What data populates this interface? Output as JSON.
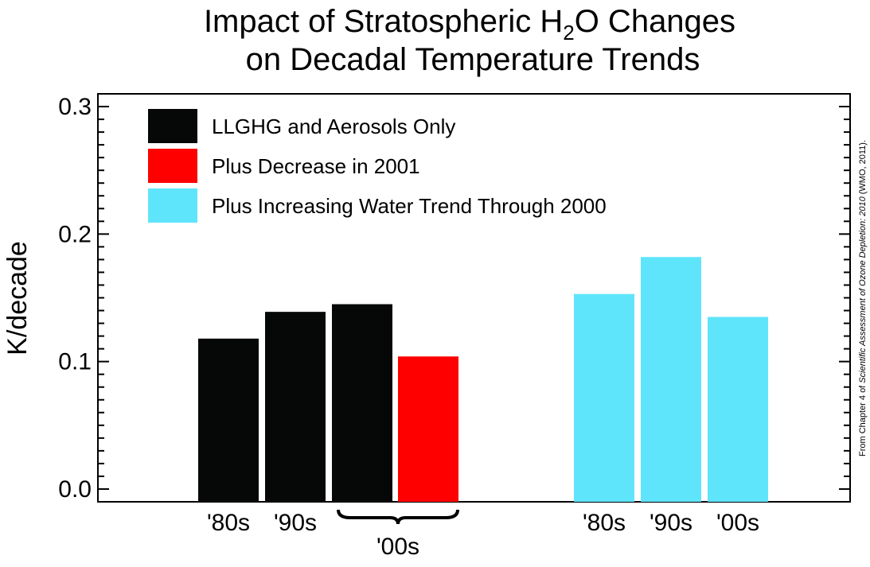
{
  "title": {
    "line1_prefix": "Impact of Stratospheric H",
    "line1_sub": "2",
    "line1_suffix": "O Changes",
    "line2": "on Decadal Temperature Trends"
  },
  "credit": {
    "prefix": "From Chapter 4 of ",
    "italic": "Scientific Assessment of Ozone Depletion: 2010",
    "suffix": " (WMO, 2011)."
  },
  "chart_data": {
    "type": "bar",
    "title": "Impact of Stratospheric H2O Changes on Decadal Temperature Trends",
    "xlabel": "",
    "ylabel": "K/decade",
    "ylim": [
      -0.01,
      0.31
    ],
    "yticks": [
      "0.0",
      "0.1",
      "0.2",
      "0.3"
    ],
    "legend_position": "top-left",
    "series": [
      {
        "name": "LLGHG and Aerosols Only",
        "color": "#060707"
      },
      {
        "name": "Plus Decrease in 2001",
        "color": "#fe0000"
      },
      {
        "name": "Plus Increasing Water Trend Through 2000",
        "color": "#5fe5fb"
      }
    ],
    "bars": [
      {
        "category": "'80s",
        "series": "LLGHG and Aerosols Only",
        "value": 0.118,
        "color": "#060707"
      },
      {
        "category": "'90s",
        "series": "LLGHG and Aerosols Only",
        "value": 0.139,
        "color": "#060707"
      },
      {
        "category": "'00s",
        "series": "LLGHG and Aerosols Only",
        "value": 0.145,
        "color": "#060707"
      },
      {
        "category": "'00s",
        "series": "Plus Decrease in 2001",
        "value": 0.104,
        "color": "#fe0000"
      },
      {
        "category": "'80s",
        "series": "Plus Increasing Water Trend Through 2000",
        "value": 0.153,
        "color": "#5fe5fb"
      },
      {
        "category": "'90s",
        "series": "Plus Increasing Water Trend Through 2000",
        "value": 0.182,
        "color": "#5fe5fb"
      },
      {
        "category": "'00s",
        "series": "Plus Increasing Water Trend Through 2000",
        "value": 0.135,
        "color": "#5fe5fb"
      }
    ],
    "x_labels": {
      "left_group": [
        "'80s",
        "'90s"
      ],
      "bracket_label": "'00s",
      "right_group": [
        "'80s",
        "'90s",
        "'00s"
      ]
    }
  }
}
